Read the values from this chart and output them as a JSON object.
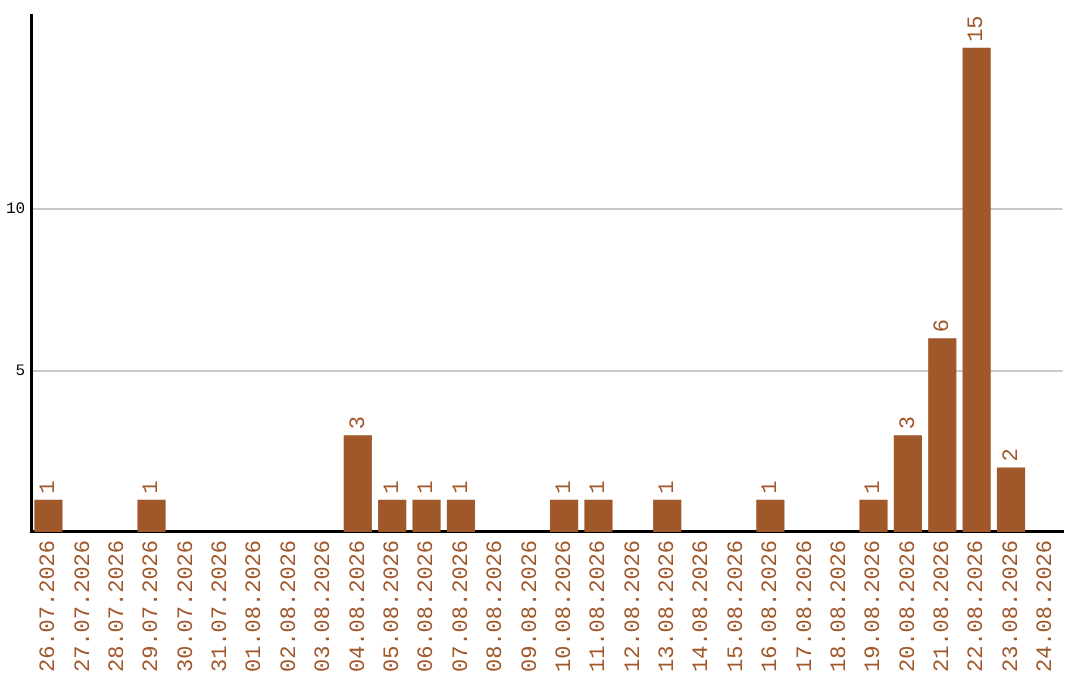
{
  "chart_data": {
    "type": "bar",
    "categories": [
      "26.07.2026",
      "27.07.2026",
      "28.07.2026",
      "29.07.2026",
      "30.07.2026",
      "31.07.2026",
      "01.08.2026",
      "02.08.2026",
      "03.08.2026",
      "04.08.2026",
      "05.08.2026",
      "06.08.2026",
      "07.08.2026",
      "08.08.2026",
      "09.08.2026",
      "10.08.2026",
      "11.08.2026",
      "12.08.2026",
      "13.08.2026",
      "14.08.2026",
      "15.08.2026",
      "16.08.2026",
      "17.08.2026",
      "18.08.2026",
      "19.08.2026",
      "20.08.2026",
      "21.08.2026",
      "22.08.2026",
      "23.08.2026",
      "24.08.2026"
    ],
    "values": [
      1,
      0,
      0,
      1,
      0,
      0,
      0,
      0,
      0,
      3,
      1,
      1,
      1,
      0,
      0,
      1,
      1,
      0,
      1,
      0,
      0,
      1,
      0,
      0,
      1,
      3,
      6,
      15,
      2,
      0
    ],
    "value_labels": [
      "1",
      null,
      null,
      "1",
      null,
      null,
      null,
      null,
      null,
      "3",
      "1",
      "1",
      "1",
      null,
      null,
      "1",
      "1",
      null,
      "1",
      null,
      null,
      "1",
      null,
      null,
      "1",
      "3",
      "6",
      "15",
      "2",
      null
    ],
    "color": "#a0572a",
    "ylim": [
      0,
      16
    ],
    "yticks": [
      5,
      10
    ],
    "grid": "y"
  }
}
